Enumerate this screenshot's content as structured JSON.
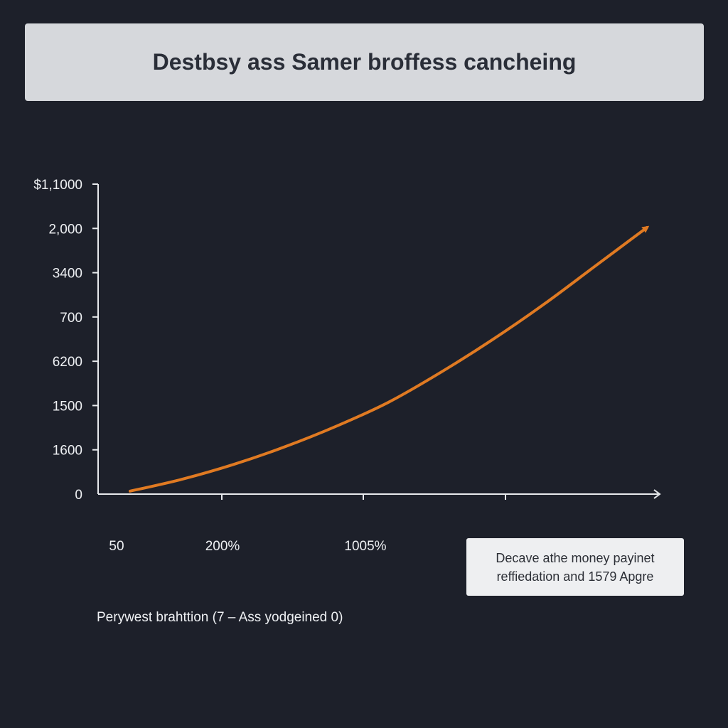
{
  "chart_data": {
    "type": "line",
    "title": "Destbsy ass Samer broffess cancheing",
    "y_tick_labels": [
      "$1,1000",
      "2,000",
      "3400",
      "700",
      "6200",
      "1500",
      "1600",
      "0"
    ],
    "x_tick_labels": [
      "50",
      "200%",
      "1005%"
    ],
    "xlabel": "Perywest brahttion (7 – Ass yodgeined 0)",
    "ylabel": "",
    "annotation": [
      "Decave athe money payinet",
      "reffiedation and 1579 Apgre"
    ],
    "grid": false,
    "legend": "none",
    "series": [
      {
        "x": [
          0,
          0.1,
          0.2,
          0.3,
          0.4,
          0.5,
          0.6,
          0.7,
          0.8,
          0.9,
          1.0
        ],
        "y": [
          0.01,
          0.05,
          0.1,
          0.16,
          0.23,
          0.31,
          0.41,
          0.52,
          0.64,
          0.77,
          0.9
        ],
        "color": "#e07a22"
      }
    ],
    "xlim": [
      0,
      1.2
    ],
    "ylim": [
      0,
      1.0
    ]
  },
  "colors": {
    "background": "#1d202a",
    "axis": "#e8eaed",
    "line": "#e07a22",
    "banner": "#d6d8dc"
  }
}
